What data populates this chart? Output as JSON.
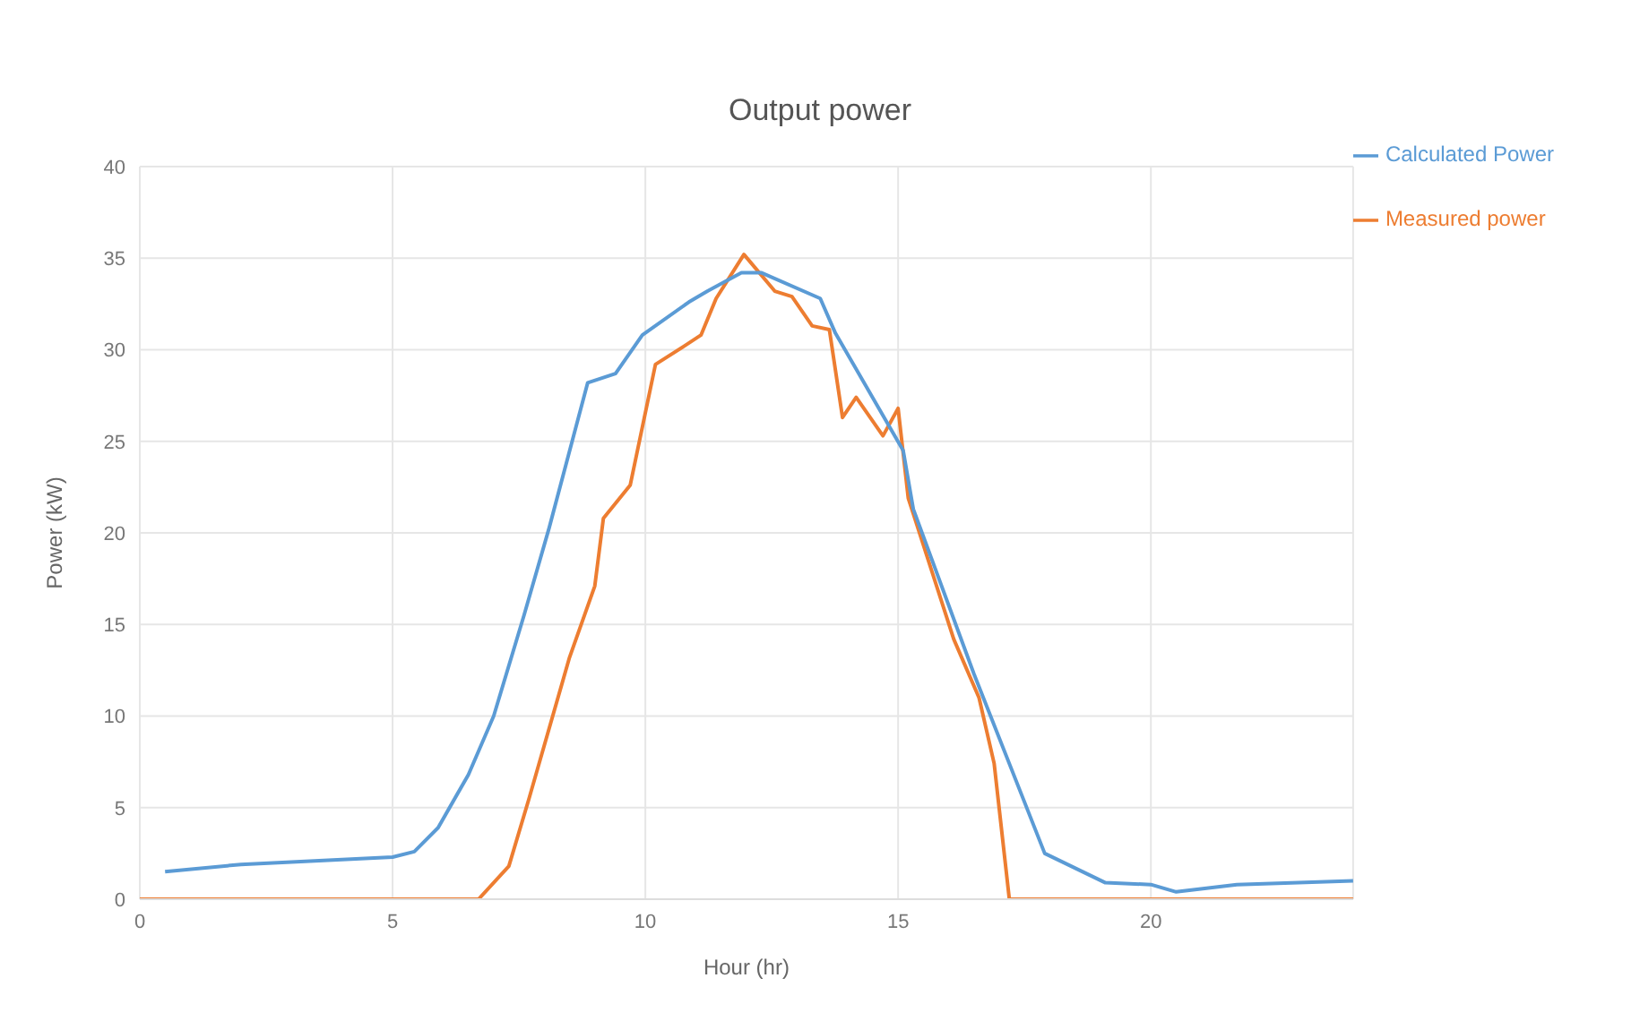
{
  "chart_data": {
    "type": "line",
    "title": "Output power",
    "xlabel": "Hour (hr)",
    "ylabel": "Power (kW)",
    "xlim": [
      0,
      24
    ],
    "xticks": [
      0,
      5,
      10,
      15,
      20
    ],
    "ylim": [
      0,
      40
    ],
    "yticks": [
      0,
      5,
      10,
      15,
      20,
      25,
      30,
      35,
      40
    ],
    "grid": true,
    "legend": "top right",
    "marker": "none",
    "line_style": "solid",
    "series": [
      {
        "name": "Measured power",
        "color": "#ed7d31",
        "x": [
          0,
          6.7,
          7.3,
          7.7,
          8.5,
          9.0,
          9.17,
          9.7,
          10.2,
          10.77,
          11.1,
          11.4,
          11.95,
          12.56,
          12.9,
          13.3,
          13.64,
          13.9,
          14.17,
          14.7,
          15.0,
          15.2,
          16.1,
          16.6,
          16.9,
          17.2,
          24
        ],
        "values": [
          0,
          0,
          1.8,
          5.5,
          13.2,
          17.1,
          20.8,
          22.6,
          29.2,
          30.2,
          30.8,
          32.8,
          35.2,
          33.2,
          32.9,
          31.3,
          31.1,
          26.3,
          27.4,
          25.3,
          26.8,
          21.9,
          14.2,
          11,
          7.4,
          0,
          0
        ]
      },
      {
        "name": "Calculated Power",
        "color": "#5b9bd5",
        "x": [
          0.5,
          2,
          5,
          5.43,
          5.9,
          6.5,
          7.0,
          7.6,
          8.1,
          8.6,
          8.86,
          9.41,
          9.94,
          10.86,
          11.23,
          11.9,
          12.3,
          13.46,
          13.76,
          15.1,
          15.3,
          16.5,
          17.9,
          19.1,
          20,
          20.5,
          21.7,
          24
        ],
        "values": [
          1.5,
          1.9,
          2.3,
          2.6,
          3.9,
          6.8,
          10,
          15.5,
          20.3,
          25.5,
          28.2,
          28.7,
          30.8,
          32.6,
          33.2,
          34.2,
          34.2,
          32.8,
          30.9,
          24.5,
          21.3,
          12.3,
          2.5,
          0.9,
          0.8,
          0.4,
          0.8,
          1.0
        ]
      }
    ]
  }
}
